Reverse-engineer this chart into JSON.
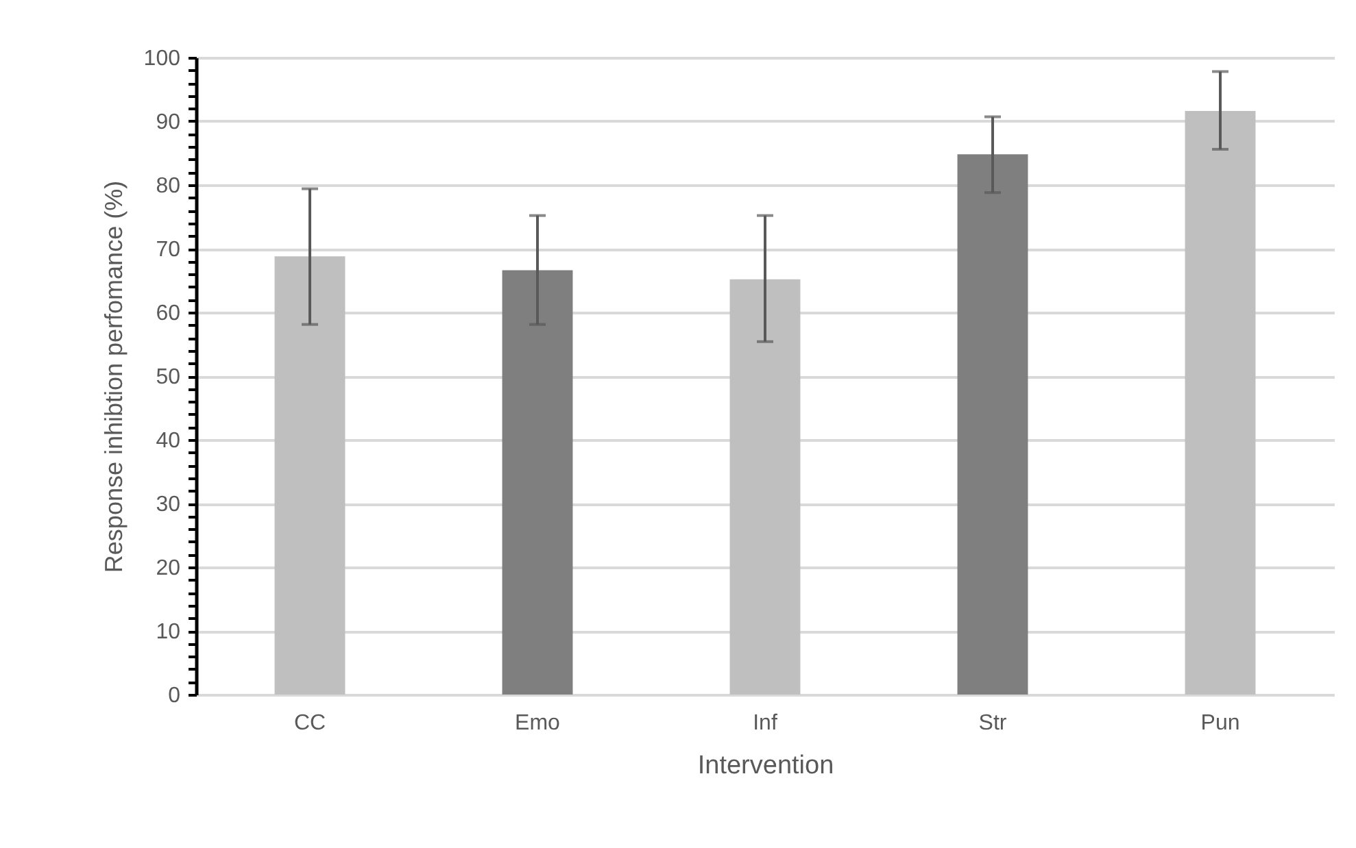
{
  "chart_data": {
    "type": "bar",
    "xlabel": "Intervention",
    "ylabel": "Response inhibtion perfomance (%)",
    "categories": [
      "CC",
      "Emo",
      "Inf",
      "Str",
      "Pun"
    ],
    "values": [
      68.8,
      66.6,
      65.2,
      84.8,
      91.6
    ],
    "colors": [
      "#bfbfbf",
      "#7f7f7f",
      "#bfbfbf",
      "#7f7f7f",
      "#bfbfbf"
    ],
    "errors": [
      [
        58.1,
        79.4
      ],
      [
        58.1,
        75.2
      ],
      [
        55.4,
        75.2
      ],
      [
        78.8,
        90.7
      ],
      [
        85.6,
        97.8
      ]
    ],
    "ylim": [
      0,
      100
    ],
    "yticks": [
      0,
      {
        "value": 2,
        "label": null
      },
      {
        "value": 4,
        "label": null
      },
      {
        "value": 6,
        "label": null
      },
      {
        "value": 8,
        "label": null
      },
      10,
      {
        "value": 12,
        "label": null
      },
      {
        "value": 14,
        "label": null
      },
      {
        "value": 16,
        "label": null
      },
      {
        "value": 18,
        "label": null
      },
      20,
      {
        "value": 22,
        "label": null
      },
      {
        "value": 24,
        "label": null
      },
      {
        "value": 26,
        "label": null
      },
      {
        "value": 28,
        "label": null
      },
      30,
      {
        "value": 32,
        "label": null
      },
      {
        "value": 34,
        "label": null
      },
      {
        "value": 36,
        "label": null
      },
      {
        "value": 38,
        "label": null
      },
      40,
      {
        "value": 42,
        "label": null
      },
      {
        "value": 44,
        "label": null
      },
      {
        "value": 46,
        "label": null
      },
      {
        "value": 48,
        "label": null
      },
      50,
      {
        "value": 52,
        "label": null
      },
      {
        "value": 54,
        "label": null
      },
      {
        "value": 56,
        "label": null
      },
      {
        "value": 58,
        "label": null
      },
      60,
      {
        "value": 62,
        "label": null
      },
      {
        "value": 64,
        "label": null
      },
      {
        "value": 66,
        "label": null
      },
      {
        "value": 68,
        "label": null
      },
      70,
      {
        "value": 72,
        "label": null
      },
      {
        "value": 74,
        "label": null
      },
      {
        "value": 76,
        "label": null
      },
      {
        "value": 78,
        "label": null
      },
      80,
      {
        "value": 82,
        "label": null
      },
      {
        "value": 84,
        "label": null
      },
      {
        "value": 86,
        "label": null
      },
      {
        "value": 88,
        "label": null
      },
      90,
      {
        "value": 92,
        "label": null
      },
      {
        "value": 94,
        "label": null
      },
      {
        "value": 96,
        "label": null
      },
      {
        "value": 98,
        "label": null
      },
      100
    ],
    "grid": "y"
  }
}
